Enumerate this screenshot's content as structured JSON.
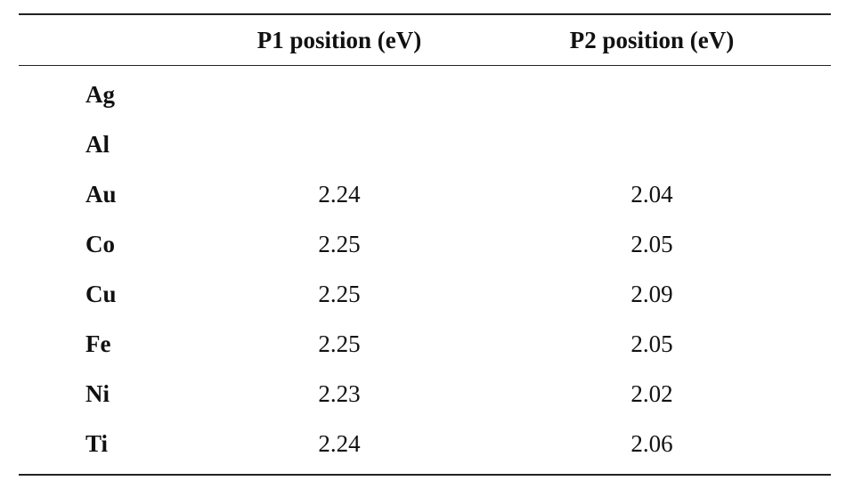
{
  "table": {
    "columns": [
      "",
      "P1 position (eV)",
      "P2 position (eV)"
    ],
    "rows": [
      {
        "element": "Ag",
        "p1": "",
        "p2": ""
      },
      {
        "element": "Al",
        "p1": "",
        "p2": ""
      },
      {
        "element": "Au",
        "p1": "2.24",
        "p2": "2.04"
      },
      {
        "element": "Co",
        "p1": "2.25",
        "p2": "2.05"
      },
      {
        "element": "Cu",
        "p1": "2.25",
        "p2": "2.09"
      },
      {
        "element": "Fe",
        "p1": "2.25",
        "p2": "2.05"
      },
      {
        "element": "Ni",
        "p1": "2.23",
        "p2": "2.02"
      },
      {
        "element": "Ti",
        "p1": "2.24",
        "p2": "2.06"
      }
    ]
  }
}
